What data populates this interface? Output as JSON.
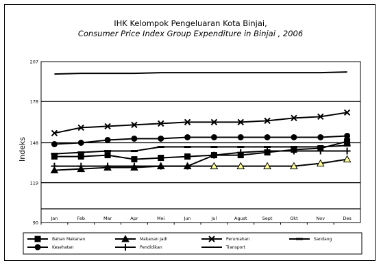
{
  "chart_data": {
    "type": "line",
    "title": "IHK Kelompok Pengeluaran Kota Binjai,",
    "subtitle": "Consumer Price Index Group Expenditure in Binjai , 2006",
    "ylabel": "Indeks",
    "xlabel": "",
    "ylim": [
      90,
      207
    ],
    "yticks": [
      90,
      119,
      148,
      178,
      207
    ],
    "y_tick_labels": [
      "90",
      "119",
      "148",
      "178",
      "207"
    ],
    "categories": [
      "Jan",
      "Feb",
      "Mar",
      "Apr",
      "Mei",
      "Jun",
      "Jul",
      "Agust",
      "Sept",
      "Okt",
      "Nov",
      "Des"
    ],
    "grid": "horizontal",
    "legend_position": "bottom",
    "series": [
      {
        "name": "Bahan Makanan",
        "marker": "square",
        "values": [
          138,
          138,
          139,
          136,
          137,
          138,
          139,
          139,
          141,
          143,
          144,
          149
        ]
      },
      {
        "name": "Makanan Jadi",
        "marker": "triangle",
        "values": [
          128,
          129,
          130,
          130,
          131,
          131,
          131,
          131,
          131,
          131,
          133,
          136
        ]
      },
      {
        "name": "Perumahan",
        "marker": "x",
        "values": [
          155,
          159,
          160,
          161,
          162,
          163,
          163,
          163,
          164,
          166,
          167,
          170
        ]
      },
      {
        "name": "Sandang",
        "marker": "dash",
        "values": [
          140,
          141,
          142,
          142,
          145,
          145,
          145,
          145,
          145,
          145,
          145,
          146
        ]
      },
      {
        "name": "Kesehatan",
        "marker": "circle",
        "values": [
          147,
          148,
          150,
          151,
          151,
          152,
          152,
          152,
          152,
          152,
          152,
          153
        ]
      },
      {
        "name": "Pendidikan",
        "marker": "plus",
        "values": [
          131,
          131,
          131,
          131,
          131,
          131,
          139,
          141,
          142,
          142,
          142,
          142
        ]
      },
      {
        "name": "Transport",
        "marker": "none",
        "values": [
          198,
          198.5,
          198.5,
          198.5,
          199,
          199,
          199,
          199,
          199,
          199,
          199,
          199.5
        ]
      }
    ]
  },
  "colors": {
    "line": "#000000",
    "marker_highlight": "#ffff99",
    "background": "#ffffff"
  }
}
